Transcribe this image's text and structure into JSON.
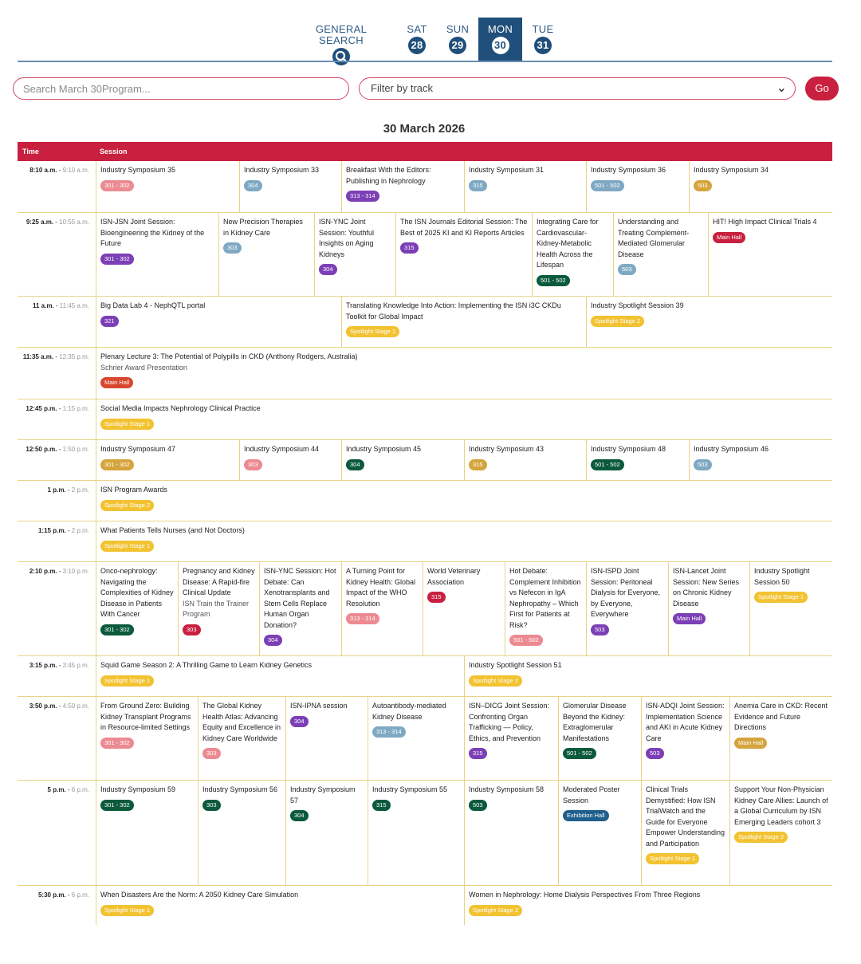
{
  "nav": {
    "general_search": "GENERAL SEARCH",
    "days": [
      {
        "dow": "SAT",
        "num": "28"
      },
      {
        "dow": "SUN",
        "num": "29"
      },
      {
        "dow": "MON",
        "num": "30"
      },
      {
        "dow": "TUE",
        "num": "31"
      }
    ]
  },
  "search": {
    "placeholder": "Search March 30Program..."
  },
  "filter": {
    "label": "Filter by track"
  },
  "go_label": "Go",
  "day_title": "30 March 2026",
  "table": {
    "time_header": "Time",
    "session_header": "Session"
  },
  "colors": {
    "accent": "#c8203e",
    "nav": "#1f4f7a",
    "rule": "#e8d387"
  },
  "rows": [
    {
      "start": "8:10 a.m.",
      "end": "9:10 a.m.",
      "cells": [
        {
          "title": "Industry Symposium 35",
          "badge": "301 - 302",
          "color": "#ec8a92"
        },
        {
          "title": "Industry Symposium 33",
          "badge": "304",
          "color": "#7fa9c3"
        },
        {
          "title": "Breakfast With the Editors: Publishing in Nephrology",
          "badge": "313 - 314",
          "color": "#7c3fb5"
        },
        {
          "title": "Industry Symposium 31",
          "badge": "315",
          "color": "#7fa9c3"
        },
        {
          "title": "Industry Symposium 36",
          "badge": "501 - 502",
          "color": "#7fa9c3"
        },
        {
          "title": "Industry Symposium 34",
          "badge": "503",
          "color": "#d6a43c"
        }
      ]
    },
    {
      "start": "9:25 a.m.",
      "end": "10:55 a.m.",
      "cells": [
        {
          "title": "ISN-JSN Joint Session: Bioengineering the Kidney of the Future",
          "badge": "301 - 302",
          "color": "#7c3fb5"
        },
        {
          "title": "New Precision Therapies in Kidney Care",
          "badge": "303",
          "color": "#7fa9c3"
        },
        {
          "title": "ISN-YNC Joint Session: Youthful Insights on Aging Kidneys",
          "badge": "304",
          "color": "#7c3fb5"
        },
        {
          "title": "The ISN Journals Editorial Session: The Best of 2025 KI and KI Reports Articles",
          "badge": "315",
          "color": "#7c3fb5"
        },
        {
          "title": "Integrating Care for Cardiovascular-Kidney-Metabolic Health Across the Lifespan",
          "badge": "501 - 502",
          "color": "#0c5a3c"
        },
        {
          "title": "Understanding and Treating Complement-Mediated Glomerular Disease",
          "badge": "503",
          "color": "#7fa9c3"
        },
        {
          "title": "HIT! High Impact Clinical Trials 4",
          "badge": "Main Hall",
          "color": "#c8203e"
        }
      ]
    },
    {
      "start": "11 a.m.",
      "end": "11:45 a.m.",
      "cells": [
        {
          "title": "Big Data Lab 4 - NephQTL portal",
          "badge": "321",
          "color": "#7c3fb5"
        },
        {
          "title": "Translating Knowledge Into Action: Implementing the ISN i3C CKDu Toolkit for Global Impact",
          "badge": "Spotlight Stage 1",
          "color": "#f2c230"
        },
        {
          "title": "Industry Spotlight Session 39",
          "badge": "Spotlight Stage 2",
          "color": "#f2c230"
        }
      ]
    },
    {
      "start": "11:35 a.m.",
      "end": "12:35 p.m.",
      "cells": [
        {
          "title": "Plenary Lecture 3: The Potential of Polypills in CKD (Anthony Rodgers, Australia)",
          "sub": "Schrier Award Presentation",
          "badge": "Main Hall",
          "color": "#d9462e"
        }
      ]
    },
    {
      "start": "12:45 p.m.",
      "end": "1:15 p.m.",
      "cells": [
        {
          "title": "Social Media Impacts Nephrology Clinical Practice",
          "badge": "Spotlight Stage 1",
          "color": "#f2c230"
        }
      ]
    },
    {
      "start": "12:50 p.m.",
      "end": "1:50 p.m.",
      "cells": [
        {
          "title": "Industry Symposium 47",
          "badge": "301 - 302",
          "color": "#d6a43c"
        },
        {
          "title": "Industry Symposium 44",
          "badge": "303",
          "color": "#ec8a92"
        },
        {
          "title": "Industry Symposium 45",
          "badge": "304",
          "color": "#0c5a3c"
        },
        {
          "title": "Industry Symposium 43",
          "badge": "315",
          "color": "#d6a43c"
        },
        {
          "title": "Industry Symposium 48",
          "badge": "501 - 502",
          "color": "#0c5a3c"
        },
        {
          "title": "Industry Symposium 46",
          "badge": "503",
          "color": "#7fa9c3"
        }
      ]
    },
    {
      "start": "1 p.m.",
      "end": "2 p.m.",
      "cells": [
        {
          "title": "ISN Program Awards",
          "badge": "Spotlight Stage 2",
          "color": "#f2c230"
        }
      ]
    },
    {
      "start": "1:15 p.m.",
      "end": "2 p.m.",
      "cells": [
        {
          "title": "What Patients Tells Nurses (and Not Doctors)",
          "badge": "Spotlight Stage 1",
          "color": "#f2c230"
        }
      ]
    },
    {
      "start": "2:10 p.m.",
      "end": "3:10 p.m.",
      "cells": [
        {
          "title": "Onco-nephrology: Navigating the Complexities of Kidney Disease in Patients With Cancer",
          "badge": "301 - 302",
          "color": "#0c5a3c"
        },
        {
          "title": "Pregnancy and Kidney Disease: A Rapid-fire Clinical Update",
          "sub": "ISN Train the Trainer Program",
          "badge": "303",
          "color": "#c8203e"
        },
        {
          "title": "ISN-YNC Session: Hot Debate: Can Xenotransplants and Stem Cells Replace Human Organ Donation?",
          "badge": "304",
          "color": "#7c3fb5"
        },
        {
          "title": "A Turning Point for Kidney Health: Global Impact of the WHO Resolution",
          "badge": "313 - 314",
          "color": "#ec8a92"
        },
        {
          "title": "World Veterinary Association",
          "badge": "315",
          "color": "#c8203e"
        },
        {
          "title": "Hot Debate: Complement Inhibition vs Nefecon in IgA Nephropathy – Which First for Patients at Risk?",
          "badge": "501 - 502",
          "color": "#ec8a92"
        },
        {
          "title": "ISN-ISPD Joint Session: Peritoneal Dialysis for Everyone, by Everyone, Everywhere",
          "badge": "503",
          "color": "#7c3fb5"
        },
        {
          "title": "ISN-Lancet Joint Session: New Series on Chronic Kidney Disease",
          "badge": "Main Hall",
          "color": "#7c3fb5"
        },
        {
          "title": "Industry Spotlight Session 50",
          "badge": "Spotlight Stage 1",
          "color": "#f2c230"
        }
      ]
    },
    {
      "start": "3:15 p.m.",
      "end": "3:45 p.m.",
      "cells": [
        {
          "title": "Squid Game Season 2: A Thrilling Game to Learn Kidney Genetics",
          "badge": "Spotlight Stage 1",
          "color": "#f2c230"
        },
        {
          "title": "Industry Spotlight Session 51",
          "badge": "Spotlight Stage 2",
          "color": "#f2c230"
        }
      ]
    },
    {
      "start": "3:50 p.m.",
      "end": "4:50 p.m.",
      "cells": [
        {
          "title": "From Ground Zero: Building Kidney Transplant Programs in Resource-limited Settings",
          "badge": "301 - 302",
          "color": "#ec8a92"
        },
        {
          "title": "The Global Kidney Health Atlas: Advancing Equity and Excellence in Kidney Care Worldwide",
          "badge": "303",
          "color": "#ec8a92"
        },
        {
          "title": "ISN-IPNA session",
          "badge": "304",
          "color": "#7c3fb5"
        },
        {
          "title": "Autoantibody-mediated Kidney Disease",
          "badge": "313 - 314",
          "color": "#7fa9c3"
        },
        {
          "title": "ISN–DICG Joint Session: Confronting Organ Trafficking — Policy, Ethics, and Prevention",
          "badge": "315",
          "color": "#7c3fb5"
        },
        {
          "title": "Glomerular Disease Beyond the Kidney: Extraglomerular Manifestations",
          "badge": "501 - 502",
          "color": "#0c5a3c"
        },
        {
          "title": "ISN-ADQI Joint Session: Implementation Science and AKI in Acute Kidney Care",
          "badge": "503",
          "color": "#7c3fb5"
        },
        {
          "title": "Anemia Care in CKD: Recent Evidence and Future Directions",
          "badge": "Main Hall",
          "color": "#d6a43c"
        }
      ]
    },
    {
      "start": "5 p.m.",
      "end": "6 p.m.",
      "cells": [
        {
          "title": "Industry Symposium 59",
          "badge": "301 - 302",
          "color": "#0c5a3c"
        },
        {
          "title": "Industry Symposium 56",
          "badge": "303",
          "color": "#0c5a3c"
        },
        {
          "title": "Industry Symposium 57",
          "badge": "304",
          "color": "#0c5a3c"
        },
        {
          "title": "Industry Symposium 55",
          "badge": "315",
          "color": "#0c5a3c"
        },
        {
          "title": "Industry Symposium 58",
          "badge": "503",
          "color": "#0c5a3c"
        },
        {
          "title": "Moderated Poster Session",
          "badge": "Exhibition Hall",
          "color": "#1f5f8a"
        },
        {
          "title": "Clinical Trials Demystified: How ISN TrialWatch and the Guide for Everyone Empower Understanding and Participation",
          "badge": "Spotlight Stage 1",
          "color": "#f2c230"
        },
        {
          "title": "Support Your Non-Physician Kidney Care Allies: Launch of a Global Curriculum by ISN Emerging Leaders cohort 3",
          "badge": "Spotlight Stage 2",
          "color": "#f2c230"
        }
      ]
    },
    {
      "start": "5:30 p.m.",
      "end": "6 p.m.",
      "cells": [
        {
          "title": "When Disasters Are the Norm: A 2050 Kidney Care Simulation",
          "badge": "Spotlight Stage 1",
          "color": "#f2c230"
        },
        {
          "title": "Women in Nephrology: Home Dialysis Perspectives From Three Regions",
          "badge": "Spotlight Stage 2",
          "color": "#f2c230"
        }
      ]
    }
  ]
}
